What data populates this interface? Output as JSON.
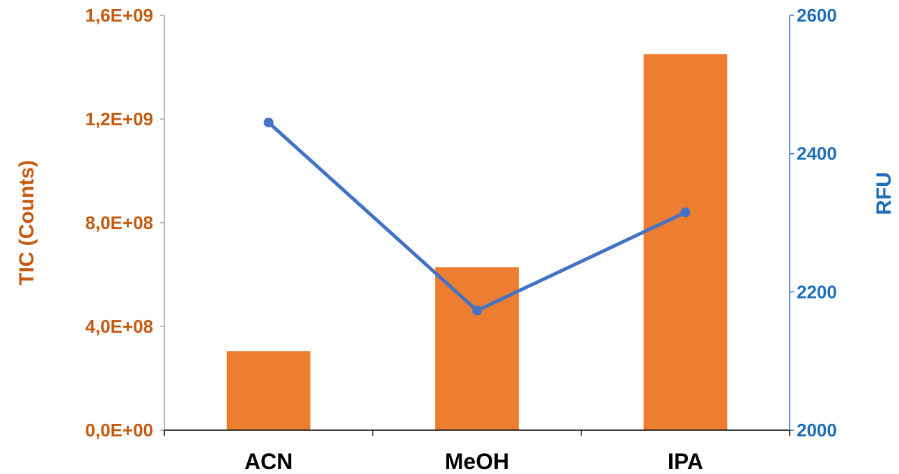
{
  "chart_data": {
    "type": "bar",
    "categories": [
      "ACN",
      "MeOH",
      "IPA"
    ],
    "series": [
      {
        "name": "TIC (Counts)",
        "type": "bar",
        "axis": "left",
        "color": "#ED7D31",
        "values": [
          305000000,
          628000000,
          1450000000
        ]
      },
      {
        "name": "RFU",
        "type": "line",
        "axis": "right",
        "color": "#4472C4",
        "values": [
          2445,
          2173,
          2315
        ]
      }
    ],
    "left_axis": {
      "label": "TIC (Counts)",
      "color": "#C55A11",
      "min": 0,
      "max": 1600000000,
      "ticks": [
        0,
        400000000,
        800000000,
        1200000000,
        1600000000
      ],
      "tick_labels": [
        "0,0E+00",
        "4,0E+08",
        "8,0E+08",
        "1,2E+09",
        "1,6E+09"
      ]
    },
    "right_axis": {
      "label": "RFU",
      "color": "#1F6FB8",
      "min": 2000,
      "max": 2600,
      "ticks": [
        2000,
        2200,
        2400,
        2600
      ],
      "tick_labels": [
        "2000",
        "2200",
        "2400",
        "2600"
      ]
    },
    "grid": false,
    "legend": "none"
  }
}
